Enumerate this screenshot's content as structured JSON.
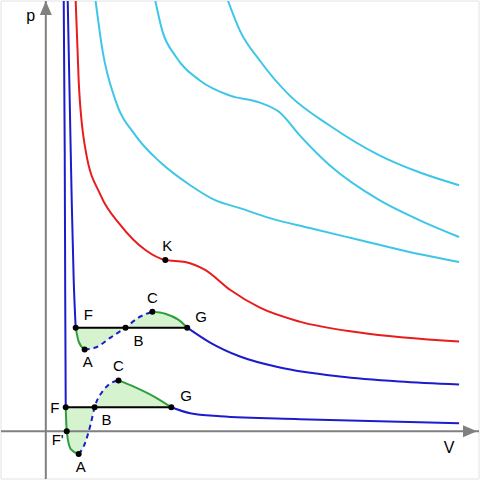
{
  "chart_data": {
    "type": "line",
    "x_label": "V",
    "y_label": "p",
    "xlim": [
      -45,
      435
    ],
    "ylim": [
      -48,
      432
    ],
    "tick_labels": false,
    "grid": false,
    "series": [
      {
        "type": "area",
        "color": "#d6f3cf",
        "base": 104,
        "x": [
          30,
          33,
          39,
          50,
          65,
          80
        ],
        "values": [
          104,
          90,
          82,
          84,
          94,
          104
        ]
      },
      {
        "type": "area",
        "color": "#d6f3cf",
        "base": 104,
        "x": [
          80,
          93,
          107,
          120,
          133,
          142
        ],
        "values": [
          104,
          114,
          120,
          118,
          112,
          104
        ]
      },
      {
        "type": "area",
        "color": "#d6f3cf",
        "base": 24,
        "x": [
          20,
          21,
          25,
          33,
          39,
          45,
          49
        ],
        "values": [
          24,
          0,
          -18,
          -23,
          -13,
          7,
          24
        ]
      },
      {
        "type": "area",
        "color": "#d6f3cf",
        "base": 24,
        "x": [
          49,
          57,
          65,
          73,
          90,
          110,
          126
        ],
        "values": [
          24,
          40,
          48,
          51,
          44,
          34,
          24
        ]
      },
      {
        "color": "#3ec6e8",
        "line_style": "solid",
        "x": [
          183,
          195,
          215,
          245,
          285,
          335,
          375,
          415
        ],
        "values": [
          432,
          402,
          372,
          337,
          307,
          277,
          260,
          247
        ]
      },
      {
        "color": "#3ec6e8",
        "line_style": "solid",
        "x": [
          110,
          117,
          130,
          155,
          185,
          215,
          235,
          255,
          285,
          335,
          375,
          415
        ],
        "values": [
          432,
          402,
          377,
          352,
          337,
          330,
          320,
          297,
          267,
          232,
          212,
          195
        ]
      },
      {
        "color": "#3ec6e8",
        "line_style": "solid",
        "x": [
          50,
          57,
          70,
          90,
          115,
          145,
          170,
          195,
          225,
          265,
          315,
          365,
          415
        ],
        "values": [
          432,
          382,
          332,
          297,
          270,
          247,
          232,
          224,
          214,
          204,
          192,
          180,
          170
        ]
      },
      {
        "color": "#e81c1c",
        "line_style": "solid",
        "x": [
          30,
          33,
          40,
          55,
          75,
          100,
          120,
          140,
          160,
          185,
          215,
          255,
          315,
          415
        ],
        "values": [
          432,
          352,
          282,
          237,
          207,
          182,
          172,
          170,
          162,
          142,
          124,
          110,
          99,
          90
        ]
      },
      {
        "color": "#1c1ccc",
        "line_style": "solid",
        "x": [
          22,
          24,
          26,
          28,
          30
        ],
        "values": [
          432,
          332,
          232,
          152,
          104
        ]
      },
      {
        "color": "#2e9e3e",
        "line_style": "solid",
        "x": [
          30,
          33,
          39
        ],
        "values": [
          104,
          90,
          82
        ]
      },
      {
        "color": "#1c1ccc",
        "line_style": "dashed",
        "x": [
          39,
          50,
          65,
          80,
          93,
          107
        ],
        "values": [
          82,
          84,
          94,
          104,
          114,
          120
        ]
      },
      {
        "color": "#2e9e3e",
        "line_style": "solid",
        "x": [
          107,
          120,
          133,
          142
        ],
        "values": [
          120,
          118,
          112,
          104
        ]
      },
      {
        "color": "#1c1ccc",
        "line_style": "solid",
        "x": [
          142,
          165,
          195,
          235,
          295,
          355,
          415
        ],
        "values": [
          104,
          89,
          75,
          64,
          55,
          50,
          47
        ]
      },
      {
        "color": "#000000",
        "line_style": "solid",
        "x": [
          30,
          142
        ],
        "values": [
          104,
          104
        ]
      },
      {
        "color": "#1c1ccc",
        "line_style": "solid",
        "x": [
          18,
          19,
          19.5,
          20
        ],
        "values": [
          432,
          282,
          132,
          24
        ]
      },
      {
        "color": "#2e9e3e",
        "line_style": "solid",
        "x": [
          20,
          21,
          25,
          33
        ],
        "values": [
          24,
          0,
          -18,
          -23
        ]
      },
      {
        "color": "#1c1ccc",
        "line_style": "dashed",
        "x": [
          33,
          39,
          45,
          49,
          57,
          65,
          73
        ],
        "values": [
          -23,
          -13,
          7,
          24,
          40,
          48,
          51
        ]
      },
      {
        "color": "#2e9e3e",
        "line_style": "solid",
        "x": [
          73,
          90,
          110,
          126
        ],
        "values": [
          51,
          44,
          34,
          24
        ]
      },
      {
        "color": "#1c1ccc",
        "line_style": "solid",
        "x": [
          126,
          145,
          175,
          255,
          415
        ],
        "values": [
          24,
          18,
          15,
          12,
          8
        ]
      },
      {
        "color": "#000000",
        "line_style": "solid",
        "x": [
          20,
          126
        ],
        "values": [
          24,
          24
        ]
      }
    ],
    "annotations": [
      {
        "text": "K",
        "x": 120,
        "y": 172
      },
      {
        "text": "F",
        "x": 30,
        "y": 104
      },
      {
        "text": "C",
        "x": 107,
        "y": 120
      },
      {
        "text": "G",
        "x": 142,
        "y": 104
      },
      {
        "text": "A",
        "x": 39,
        "y": 82
      },
      {
        "text": "B",
        "x": 80,
        "y": 104
      },
      {
        "text": "F",
        "x": 20,
        "y": 24
      },
      {
        "text": "C",
        "x": 73,
        "y": 51
      },
      {
        "text": "G",
        "x": 126,
        "y": 24
      },
      {
        "text": "B",
        "x": 49,
        "y": 24
      },
      {
        "text": "A",
        "x": 33,
        "y": -23
      },
      {
        "text": "F'",
        "x": 21,
        "y": 0
      }
    ]
  }
}
